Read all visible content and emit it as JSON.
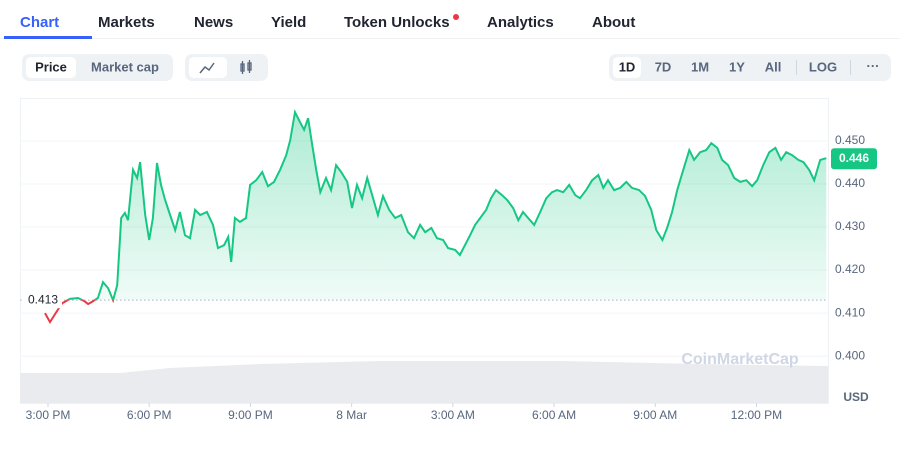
{
  "ui": {
    "tabs": [
      "Chart",
      "Markets",
      "News",
      "Yield",
      "Token Unlocks",
      "Analytics",
      "About"
    ],
    "active_tab": 0,
    "price_toggle": [
      "Price",
      "Market cap"
    ],
    "active_toggle": 0,
    "ranges": [
      "1D",
      "7D",
      "1M",
      "1Y",
      "All"
    ],
    "active_range": 0,
    "log": "LOG",
    "more": "···"
  },
  "chart_data": {
    "type": "line",
    "color": "#16c784",
    "down_color": "#ea3943",
    "reference_value": 0.413,
    "last_price": 0.446,
    "unit": "USD",
    "watermark": "CoinMarketCap",
    "xlim": [
      -0.83,
      23.12
    ],
    "ylim": [
      0.3891,
      0.46
    ],
    "grid": true,
    "xticks": [
      {
        "value": 0,
        "label": "3:00 PM"
      },
      {
        "value": 3,
        "label": "6:00 PM"
      },
      {
        "value": 6,
        "label": "9:00 PM"
      },
      {
        "value": 9,
        "label": "8 Mar"
      },
      {
        "value": 12,
        "label": "3:00 AM"
      },
      {
        "value": 15,
        "label": "6:00 AM"
      },
      {
        "value": 18,
        "label": "9:00 AM"
      },
      {
        "value": 21,
        "label": "12:00 PM"
      }
    ],
    "yticks": [
      {
        "value": 0.4,
        "label": "0.400"
      },
      {
        "value": 0.41,
        "label": "0.410"
      },
      {
        "value": 0.42,
        "label": "0.420"
      },
      {
        "value": 0.43,
        "label": "0.430"
      },
      {
        "value": 0.44,
        "label": "0.440"
      },
      {
        "value": 0.45,
        "label": "0.450"
      }
    ],
    "x": [
      -0.09,
      0.06,
      0.21,
      0.42,
      0.65,
      0.89,
      1.07,
      1.19,
      1.3,
      1.48,
      1.63,
      1.78,
      1.93,
      2.05,
      2.17,
      2.28,
      2.37,
      2.52,
      2.64,
      2.73,
      2.88,
      3.0,
      3.11,
      3.23,
      3.35,
      3.47,
      3.62,
      3.77,
      3.91,
      4.06,
      4.21,
      4.36,
      4.51,
      4.71,
      4.89,
      5.04,
      5.22,
      5.34,
      5.43,
      5.54,
      5.69,
      5.87,
      5.99,
      6.17,
      6.35,
      6.52,
      6.7,
      6.88,
      7.06,
      7.18,
      7.32,
      7.47,
      7.59,
      7.71,
      7.83,
      7.95,
      8.07,
      8.24,
      8.39,
      8.54,
      8.69,
      8.87,
      9.01,
      9.16,
      9.31,
      9.46,
      9.61,
      9.78,
      9.93,
      10.11,
      10.29,
      10.47,
      10.67,
      10.85,
      11.03,
      11.18,
      11.36,
      11.53,
      11.71,
      11.86,
      12.07,
      12.21,
      12.36,
      12.51,
      12.66,
      12.81,
      12.99,
      13.13,
      13.28,
      13.46,
      13.61,
      13.79,
      13.94,
      14.08,
      14.23,
      14.41,
      14.59,
      14.77,
      14.94,
      15.09,
      15.27,
      15.45,
      15.63,
      15.77,
      15.95,
      16.13,
      16.31,
      16.46,
      16.6,
      16.78,
      16.96,
      17.14,
      17.31,
      17.52,
      17.7,
      17.88,
      18.03,
      18.21,
      18.35,
      18.5,
      18.65,
      18.83,
      19.01,
      19.15,
      19.33,
      19.51,
      19.66,
      19.84,
      19.98,
      20.16,
      20.34,
      20.52,
      20.7,
      20.87,
      21.02,
      21.2,
      21.38,
      21.56,
      21.73,
      21.88,
      22.06,
      22.24,
      22.39,
      22.56,
      22.71,
      22.89,
      23.07
    ],
    "values": [
      0.41,
      0.4079,
      0.4098,
      0.4123,
      0.4133,
      0.4135,
      0.4128,
      0.4121,
      0.4126,
      0.4135,
      0.4172,
      0.4158,
      0.413,
      0.4165,
      0.4321,
      0.4333,
      0.4316,
      0.4433,
      0.4414,
      0.4451,
      0.4328,
      0.427,
      0.4321,
      0.4449,
      0.4398,
      0.4363,
      0.4328,
      0.4293,
      0.4335,
      0.4281,
      0.4274,
      0.434,
      0.4328,
      0.4335,
      0.4305,
      0.4251,
      0.4258,
      0.4277,
      0.4219,
      0.4321,
      0.4312,
      0.4321,
      0.4398,
      0.4409,
      0.4428,
      0.4395,
      0.4405,
      0.4433,
      0.4467,
      0.4502,
      0.4567,
      0.4544,
      0.4526,
      0.4553,
      0.4491,
      0.4433,
      0.4381,
      0.4414,
      0.4386,
      0.4444,
      0.4428,
      0.4405,
      0.4344,
      0.4398,
      0.4367,
      0.4414,
      0.4374,
      0.4328,
      0.4372,
      0.434,
      0.4321,
      0.4328,
      0.4288,
      0.4274,
      0.4305,
      0.4288,
      0.4298,
      0.4274,
      0.427,
      0.4251,
      0.4247,
      0.4235,
      0.4258,
      0.4281,
      0.4305,
      0.4321,
      0.434,
      0.4367,
      0.4386,
      0.4374,
      0.4363,
      0.4344,
      0.4316,
      0.4335,
      0.4321,
      0.4305,
      0.4335,
      0.4367,
      0.4381,
      0.4386,
      0.4381,
      0.4398,
      0.4374,
      0.4367,
      0.4386,
      0.4409,
      0.4421,
      0.4391,
      0.4409,
      0.4386,
      0.4391,
      0.4405,
      0.4391,
      0.4386,
      0.4372,
      0.434,
      0.4293,
      0.427,
      0.4298,
      0.4335,
      0.4386,
      0.4433,
      0.4479,
      0.4456,
      0.4474,
      0.4479,
      0.4495,
      0.4484,
      0.4456,
      0.4444,
      0.4414,
      0.4405,
      0.4409,
      0.4395,
      0.4409,
      0.4444,
      0.4474,
      0.4484,
      0.4456,
      0.4474,
      0.4467,
      0.4456,
      0.4451,
      0.4433,
      0.4409,
      0.4456,
      0.446
    ]
  }
}
